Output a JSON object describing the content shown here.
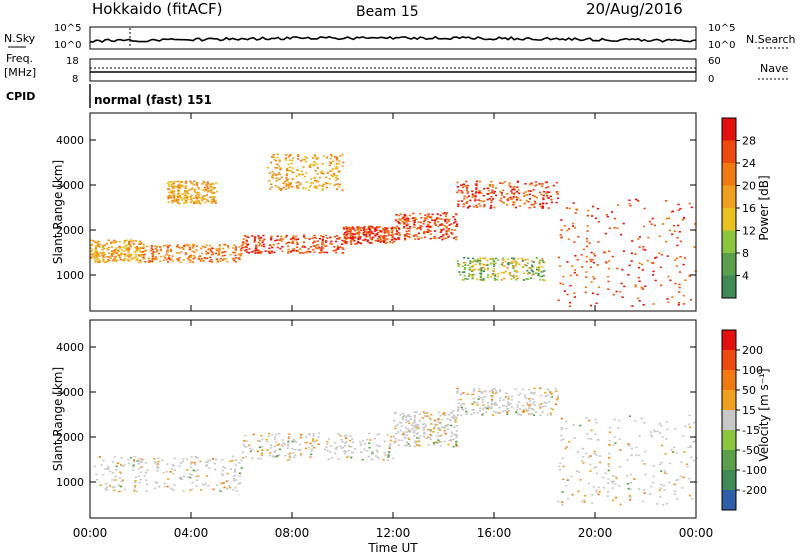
{
  "header": {
    "station": "Hokkaido (fitACF)",
    "beam": "Beam 15",
    "date": "20/Aug/2016"
  },
  "top_panels": {
    "nsky_label": "N.Sky",
    "nsearch_label": "N.Search",
    "noise_ticks": [
      "10^5",
      "10^0"
    ],
    "freq_label": "Freq.",
    "freq_unit": "[MHz]",
    "freq_ticks": [
      "18",
      "8"
    ],
    "nave_label": "Nave",
    "nave_ticks": [
      "60",
      "0"
    ],
    "cpid_label": "CPID",
    "cpid_value": "normal (fast) 151"
  },
  "colors": {
    "power": [
      "#1a1aff",
      "#2e5fa8",
      "#3f8a55",
      "#5aa04a",
      "#8cc63f",
      "#e8c020",
      "#f0a020",
      "#f07a10",
      "#ee4a10",
      "#e41010"
    ],
    "velocity": [
      "#1a1aff",
      "#2e5fa8",
      "#3f8a55",
      "#5aa04a",
      "#8cc63f",
      "#c8c8c8",
      "#f0a020",
      "#f07a10",
      "#ee4a10",
      "#e41010"
    ]
  },
  "chart_data": [
    {
      "type": "heatmap",
      "panel": "power",
      "xlabel": "",
      "ylabel": "Slant Range [km]",
      "x_ticks": [
        "00:00",
        "04:00",
        "08:00",
        "12:00",
        "16:00",
        "20:00",
        "00:00"
      ],
      "y_ticks": [
        "1000",
        "2000",
        "3000",
        "4000"
      ],
      "ylim": [
        200,
        4600
      ],
      "xlim_hours": [
        0,
        24
      ],
      "colorbar_label": "Power [dB]",
      "colorbar_ticks": [
        "28",
        "24",
        "20",
        "16",
        "12",
        "8",
        "4"
      ],
      "echo_bands": [
        {
          "t": [
            0,
            2
          ],
          "r0": 1300,
          "r1": 1800,
          "level": "orange"
        },
        {
          "t": [
            2,
            6
          ],
          "r0": 1300,
          "r1": 1700,
          "level": "orange-red"
        },
        {
          "t": [
            6,
            10
          ],
          "r0": 1500,
          "r1": 1900,
          "level": "red"
        },
        {
          "t": [
            10,
            12
          ],
          "r0": 1700,
          "r1": 2100,
          "level": "red"
        },
        {
          "t": [
            12,
            14.5
          ],
          "r0": 1800,
          "r1": 2400,
          "level": "red"
        },
        {
          "t": [
            14.5,
            18.5
          ],
          "r0": 2500,
          "r1": 3100,
          "level": "red"
        },
        {
          "t": [
            18.5,
            24
          ],
          "r0": 300,
          "r1": 2700,
          "level": "red"
        },
        {
          "t": [
            3,
            5
          ],
          "r0": 2600,
          "r1": 3100,
          "level": "orange"
        },
        {
          "t": [
            7,
            10
          ],
          "r0": 2900,
          "r1": 3700,
          "level": "orange"
        },
        {
          "t": [
            14.5,
            18
          ],
          "r0": 900,
          "r1": 1400,
          "level": "green-orange"
        }
      ]
    },
    {
      "type": "heatmap",
      "panel": "velocity",
      "xlabel": "Time UT",
      "ylabel": "Slant Range [km]",
      "x_ticks": [
        "00:00",
        "04:00",
        "08:00",
        "12:00",
        "16:00",
        "20:00",
        "00:00"
      ],
      "y_ticks": [
        "1000",
        "2000",
        "3000",
        "4000"
      ],
      "ylim": [
        200,
        4600
      ],
      "xlim_hours": [
        0,
        24
      ],
      "colorbar_label": "Velocity [m s⁻¹]",
      "colorbar_ticks": [
        "200",
        "100",
        "50",
        "15",
        "-15",
        "-50",
        "-100",
        "-200"
      ],
      "echo_bands": [
        {
          "t": [
            0,
            6
          ],
          "r0": 800,
          "r1": 1600,
          "level": "grey"
        },
        {
          "t": [
            6,
            12
          ],
          "r0": 1500,
          "r1": 2100,
          "level": "grey"
        },
        {
          "t": [
            12,
            14.5
          ],
          "r0": 1800,
          "r1": 2600,
          "level": "grey"
        },
        {
          "t": [
            14.5,
            18.5
          ],
          "r0": 2500,
          "r1": 3100,
          "level": "grey"
        },
        {
          "t": [
            18.5,
            24
          ],
          "r0": 500,
          "r1": 2500,
          "level": "grey"
        }
      ]
    }
  ]
}
